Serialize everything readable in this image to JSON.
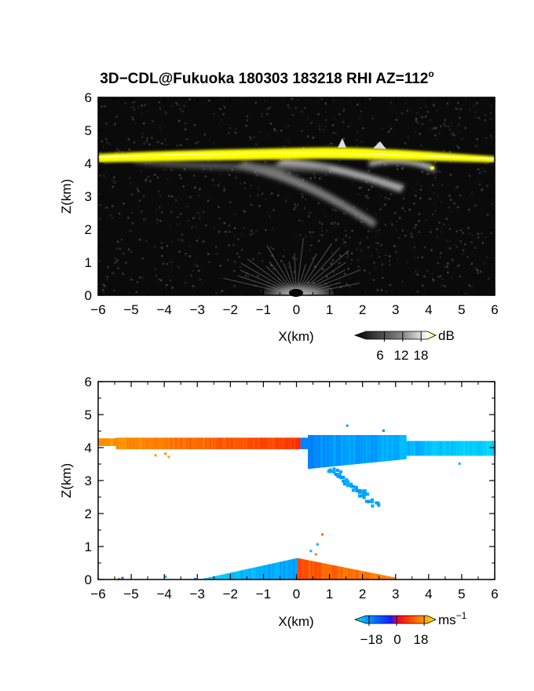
{
  "title": "3D−CDL@Fukuoka 180303 183218 RHI AZ=112",
  "title_degree": "o",
  "colors": {
    "axis": "#000000",
    "reflectivity_background": "#0a0a0a",
    "reflectivity_strong": "#ffff00",
    "velocity_toward": "#0033ff",
    "velocity_away": "#ff2200",
    "velocity_far_away": "#ffa500",
    "velocity_far_toward": "#00ccff"
  },
  "chart_data": [
    {
      "type": "heatmap",
      "name": "reflectivity-panel",
      "xlabel": "X(km)",
      "ylabel": "Z(km)",
      "xlim": [
        -6,
        6
      ],
      "ylim": [
        0,
        6
      ],
      "xticks": [
        "−6",
        "−5",
        "−4",
        "−3",
        "−2",
        "−1",
        "0",
        "1",
        "2",
        "3",
        "4",
        "5",
        "6"
      ],
      "yticks": [
        "0",
        "1",
        "2",
        "3",
        "4",
        "5",
        "6"
      ],
      "colorbar": {
        "unit": "dB",
        "ticks": [
          "6",
          "12",
          "18"
        ],
        "range": [
          0,
          20
        ]
      },
      "features": [
        {
          "label": "cloud-base layer",
          "x": [
            -6,
            6
          ],
          "z": [
            4.0,
            4.3
          ],
          "value_db": 18
        },
        {
          "label": "virga streak",
          "x": [
            0.5,
            2.5
          ],
          "z": [
            2.1,
            3.8
          ],
          "value_db": 9
        },
        {
          "label": "ground clutter",
          "x": [
            -1.2,
            1.2
          ],
          "z": [
            0,
            0.6
          ],
          "value_db": 6
        }
      ]
    },
    {
      "type": "heatmap",
      "name": "velocity-panel",
      "xlabel": "X(km)",
      "ylabel": "Z(km)",
      "xlim": [
        -6,
        6
      ],
      "ylim": [
        0,
        6
      ],
      "xticks": [
        "−6",
        "−5",
        "−4",
        "−3",
        "−2",
        "−1",
        "0",
        "1",
        "2",
        "3",
        "4",
        "5",
        "6"
      ],
      "yticks": [
        "0",
        "1",
        "2",
        "3",
        "4",
        "5",
        "6"
      ],
      "colorbar": {
        "unit": "ms",
        "unit_exp": "−1",
        "ticks": [
          "−18",
          "0",
          "18"
        ],
        "range": [
          -20,
          20
        ]
      },
      "features": [
        {
          "label": "upper layer receding",
          "x": [
            -6,
            0.2
          ],
          "z": [
            4.0,
            4.3
          ],
          "velocity_ms": 12
        },
        {
          "label": "upper layer approaching",
          "x": [
            0.2,
            6
          ],
          "z": [
            3.8,
            4.4
          ],
          "velocity_ms": -14
        },
        {
          "label": "lower layer approaching",
          "x": [
            -2.5,
            0
          ],
          "z": [
            0,
            0.6
          ],
          "velocity_ms": -15
        },
        {
          "label": "lower layer receding",
          "x": [
            0,
            2.8
          ],
          "z": [
            0,
            0.6
          ],
          "velocity_ms": 12
        }
      ]
    }
  ]
}
